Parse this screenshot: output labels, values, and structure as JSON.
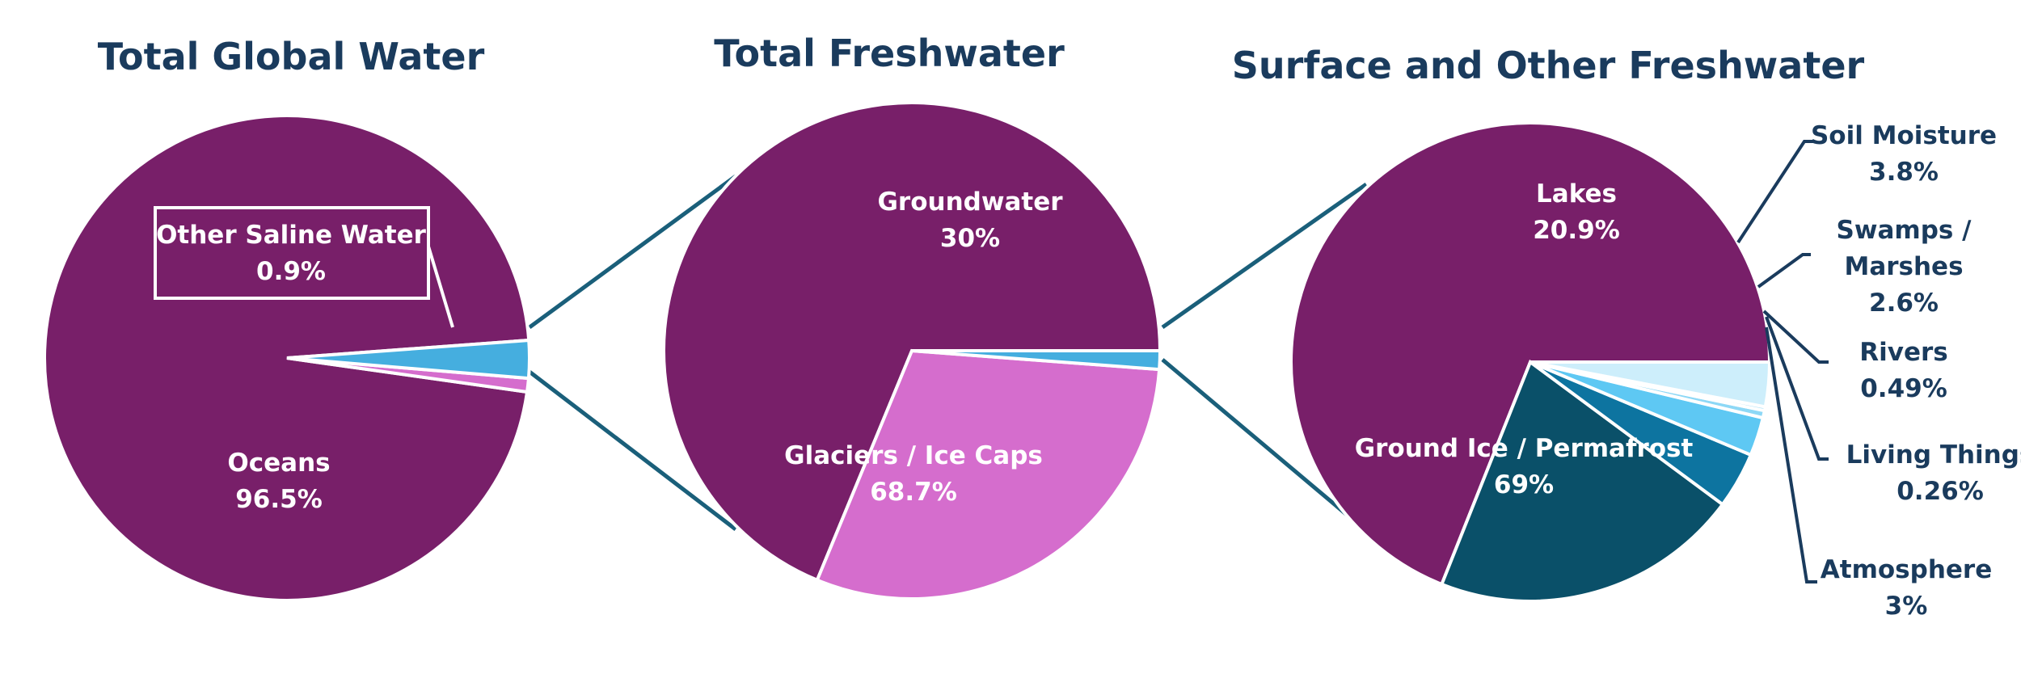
{
  "chart_data": [
    {
      "type": "pie",
      "title": "Total Global Water",
      "slices": [
        {
          "label": "Oceans",
          "value": 96.5,
          "value_label": "96.5%",
          "color": "#781f69"
        },
        {
          "label": "Other Saline Water",
          "value": 0.9,
          "value_label": "0.9%",
          "color": "#d56dcd"
        },
        {
          "label": "",
          "value": 2.5,
          "value_label": "",
          "color": "#45aedf"
        }
      ]
    },
    {
      "type": "pie",
      "title": "Total Freshwater",
      "slices": [
        {
          "label": "Glaciers / Ice Caps",
          "value": 68.7,
          "value_label": "68.7%",
          "color": "#781f69"
        },
        {
          "label": "Groundwater",
          "value": 30,
          "value_label": "30%",
          "color": "#d56dcd"
        },
        {
          "label": "",
          "value": 1.2,
          "value_label": "",
          "color": "#45aedf"
        }
      ]
    },
    {
      "type": "pie",
      "title": "Surface and Other Freshwater",
      "slices": [
        {
          "label": "Ground Ice / Permafrost",
          "value": 69,
          "value_label": "69%",
          "color": "#781f69"
        },
        {
          "label": "Lakes",
          "value": 20.9,
          "value_label": "20.9%",
          "color": "#0a5069"
        },
        {
          "label": "Soil Moisture",
          "value": 3.8,
          "value_label": "3.8%",
          "color": "#0d74a0"
        },
        {
          "label": "Swamps / Marshes",
          "value": 2.6,
          "value_label": "2.6%",
          "color": "#5ec8f3"
        },
        {
          "label": "Rivers",
          "value": 0.49,
          "value_label": "0.49%",
          "color": "#8dd8f6"
        },
        {
          "label": "Living Things",
          "value": 0.26,
          "value_label": "0.26%",
          "color": "#b7e6f9"
        },
        {
          "label": "Atmosphere",
          "value": 3,
          "value_label": "3%",
          "color": "#cdeefb"
        }
      ]
    }
  ]
}
